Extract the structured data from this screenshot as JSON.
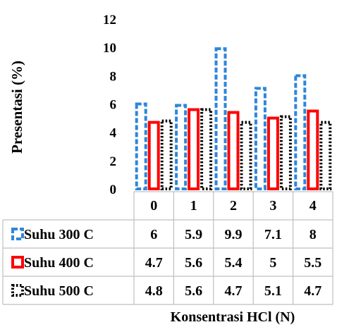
{
  "chart_data": {
    "type": "bar",
    "title": "",
    "xlabel": "Konsentrasi HCl (N)",
    "ylabel": "Presentasi (%)",
    "ylim": [
      0,
      12
    ],
    "yticks": [
      0,
      2,
      4,
      6,
      8,
      10,
      12
    ],
    "categories": [
      "0",
      "1",
      "2",
      "3",
      "4"
    ],
    "series": [
      {
        "name": "Suhu 300 C",
        "values": [
          6,
          5.9,
          9.9,
          7.1,
          8
        ],
        "color": "#2e86d8",
        "pattern": "dashed"
      },
      {
        "name": "Suhu 400 C",
        "values": [
          4.7,
          5.6,
          5.4,
          5,
          5.5
        ],
        "color": "#ff0000",
        "pattern": "solid"
      },
      {
        "name": "Suhu 500 C",
        "values": [
          4.8,
          5.6,
          4.7,
          5.1,
          4.7
        ],
        "color": "#000000",
        "pattern": "dotted"
      }
    ],
    "table": [
      [
        "6",
        "5.9",
        "9.9",
        "7.1",
        "8"
      ],
      [
        "4.7",
        "5.6",
        "5.4",
        "5",
        "5.5"
      ],
      [
        "4.8",
        "5.6",
        "4.7",
        "5.1",
        "4.7"
      ]
    ],
    "grid": false,
    "legend": "data-table-left"
  }
}
